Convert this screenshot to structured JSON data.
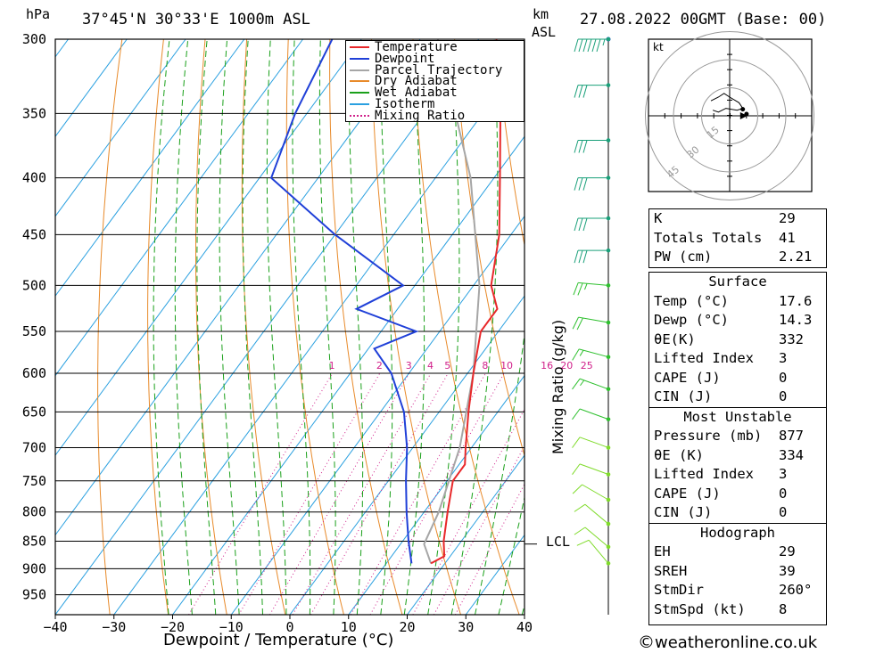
{
  "header": {
    "hpa_label": "hPa",
    "location": "37°45'N  30°33'E  1000m  ASL",
    "km_label": "km",
    "asl_label": "ASL",
    "datetime": "27.08.2022  00GMT  (Base: 00)"
  },
  "chart_data": {
    "type": "skew-t",
    "xlabel": "Dewpoint / Temperature (°C)",
    "ylabel_right": "Mixing Ratio (g/kg)",
    "x_ticks": [
      -40,
      -30,
      -20,
      -10,
      0,
      10,
      20,
      30,
      40
    ],
    "x_tick_labels": [
      "−40",
      "−30",
      "−20",
      "−10",
      "0",
      "10",
      "20",
      "30",
      "40"
    ],
    "pressure_levels": [
      300,
      350,
      400,
      450,
      500,
      550,
      600,
      650,
      700,
      750,
      800,
      850,
      900,
      950
    ],
    "pressure_range": [
      300,
      990
    ],
    "temperature_range": [
      -40,
      40
    ],
    "legend": [
      {
        "name": "Temperature",
        "color": "#e8282a",
        "style": "solid"
      },
      {
        "name": "Dewpoint",
        "color": "#2040d8",
        "style": "solid"
      },
      {
        "name": "Parcel Trajectory",
        "color": "#a6a6a6",
        "style": "solid"
      },
      {
        "name": "Dry Adiabat",
        "color": "#e88a2a",
        "style": "solid"
      },
      {
        "name": "Wet Adiabat",
        "color": "#1aa01a",
        "style": "solid"
      },
      {
        "name": "Isotherm",
        "color": "#2aa0e0",
        "style": "solid"
      },
      {
        "name": "Mixing Ratio",
        "color": "#d0208a",
        "style": "dotted"
      }
    ],
    "mixing_ratio_labels": [
      "1",
      "2",
      "3",
      "4",
      "5",
      "8",
      "10",
      "16",
      "20",
      "25"
    ],
    "mixing_ratio_values": [
      1,
      2,
      3,
      4,
      5,
      8,
      10,
      16,
      20,
      25
    ],
    "temperature_profile": [
      {
        "p": 300,
        "t": -37
      },
      {
        "p": 350,
        "t": -27
      },
      {
        "p": 400,
        "t": -19
      },
      {
        "p": 450,
        "t": -12
      },
      {
        "p": 500,
        "t": -7
      },
      {
        "p": 525,
        "t": -3
      },
      {
        "p": 550,
        "t": -3
      },
      {
        "p": 600,
        "t": 1
      },
      {
        "p": 650,
        "t": 5
      },
      {
        "p": 700,
        "t": 9
      },
      {
        "p": 725,
        "t": 11
      },
      {
        "p": 750,
        "t": 11
      },
      {
        "p": 800,
        "t": 14
      },
      {
        "p": 850,
        "t": 17
      },
      {
        "p": 877,
        "t": 19
      },
      {
        "p": 890,
        "t": 17.6
      }
    ],
    "dewpoint_profile": [
      {
        "p": 300,
        "t": -65
      },
      {
        "p": 350,
        "t": -62
      },
      {
        "p": 400,
        "t": -58
      },
      {
        "p": 450,
        "t": -40
      },
      {
        "p": 500,
        "t": -22
      },
      {
        "p": 525,
        "t": -27
      },
      {
        "p": 550,
        "t": -14
      },
      {
        "p": 570,
        "t": -19
      },
      {
        "p": 600,
        "t": -13
      },
      {
        "p": 650,
        "t": -6
      },
      {
        "p": 700,
        "t": -1
      },
      {
        "p": 750,
        "t": 3
      },
      {
        "p": 800,
        "t": 7
      },
      {
        "p": 850,
        "t": 11
      },
      {
        "p": 890,
        "t": 14.3
      }
    ],
    "parcel_profile": [
      {
        "p": 300,
        "t": -47
      },
      {
        "p": 400,
        "t": -24
      },
      {
        "p": 500,
        "t": -9
      },
      {
        "p": 600,
        "t": 1
      },
      {
        "p": 700,
        "t": 8
      },
      {
        "p": 800,
        "t": 12.5
      },
      {
        "p": 855,
        "t": 14
      },
      {
        "p": 890,
        "t": 17.6
      }
    ],
    "lcl_label": "LCL",
    "lcl_pressure": 855,
    "wind_barbs": [
      {
        "p": 300,
        "dir": 270,
        "speed": 65
      },
      {
        "p": 330,
        "dir": 270,
        "speed": 30
      },
      {
        "p": 370,
        "dir": 270,
        "speed": 30
      },
      {
        "p": 400,
        "dir": 270,
        "speed": 30
      },
      {
        "p": 435,
        "dir": 270,
        "speed": 30
      },
      {
        "p": 465,
        "dir": 270,
        "speed": 30
      },
      {
        "p": 500,
        "dir": 265,
        "speed": 25
      },
      {
        "p": 540,
        "dir": 260,
        "speed": 20
      },
      {
        "p": 580,
        "dir": 255,
        "speed": 15
      },
      {
        "p": 620,
        "dir": 250,
        "speed": 15
      },
      {
        "p": 660,
        "dir": 250,
        "speed": 10
      },
      {
        "p": 700,
        "dir": 250,
        "speed": 10
      },
      {
        "p": 740,
        "dir": 250,
        "speed": 10
      },
      {
        "p": 780,
        "dir": 240,
        "speed": 10
      },
      {
        "p": 820,
        "dir": 230,
        "speed": 10
      },
      {
        "p": 860,
        "dir": 230,
        "speed": 10
      },
      {
        "p": 890,
        "dir": 220,
        "speed": 10
      }
    ],
    "hodograph": {
      "unit_label": "kt",
      "ring_labels": [
        "15",
        "30",
        "45"
      ],
      "ring_values": [
        15,
        30,
        45
      ],
      "points": [
        {
          "u": -10,
          "v": 8
        },
        {
          "u": -6,
          "v": 10
        },
        {
          "u": -3,
          "v": 12
        },
        {
          "u": 0,
          "v": 10
        },
        {
          "u": 5,
          "v": 7
        },
        {
          "u": 7,
          "v": 4
        },
        {
          "u": 4,
          "v": 3
        },
        {
          "u": -2,
          "v": 4
        },
        {
          "u": -6,
          "v": 2
        },
        {
          "u": -9,
          "v": 3
        }
      ],
      "storm_motion": {
        "u": 8,
        "v": 0
      }
    }
  },
  "indices": [
    {
      "key": "K",
      "value": "29"
    },
    {
      "key": "Totals Totals",
      "value": "41"
    },
    {
      "key": "PW (cm)",
      "value": "2.21"
    }
  ],
  "surface": {
    "title": "Surface",
    "rows": [
      {
        "key": "Temp (°C)",
        "value": "17.6"
      },
      {
        "key": "Dewp (°C)",
        "value": "14.3"
      },
      {
        "key": "θE(K)",
        "value": "332"
      },
      {
        "key": "Lifted Index",
        "value": "3"
      },
      {
        "key": "CAPE (J)",
        "value": "0"
      },
      {
        "key": "CIN (J)",
        "value": "0"
      }
    ]
  },
  "most_unstable": {
    "title": "Most Unstable",
    "rows": [
      {
        "key": "Pressure (mb)",
        "value": "877"
      },
      {
        "key": "θE (K)",
        "value": "334"
      },
      {
        "key": "Lifted Index",
        "value": "3"
      },
      {
        "key": "CAPE (J)",
        "value": "0"
      },
      {
        "key": "CIN (J)",
        "value": "0"
      }
    ]
  },
  "hodograph_table": {
    "title": "Hodograph",
    "rows": [
      {
        "key": "EH",
        "value": "29"
      },
      {
        "key": "SREH",
        "value": "39"
      },
      {
        "key": "StmDir",
        "value": "260°"
      },
      {
        "key": "StmSpd (kt)",
        "value": "8"
      }
    ]
  },
  "footer": {
    "copyright": "©",
    "site": "weatheronline.co.uk"
  },
  "colors": {
    "temperature": "#e8282a",
    "dewpoint": "#2040d8",
    "parcel": "#a6a6a6",
    "dry_adiabat": "#e88a2a",
    "wet_adiabat": "#1aa01a",
    "isotherm": "#2aa0e0",
    "mixing_ratio": "#d0208a",
    "wind_barb": "#7fdb2a",
    "wind_barb_upper": "#1aa07a"
  }
}
